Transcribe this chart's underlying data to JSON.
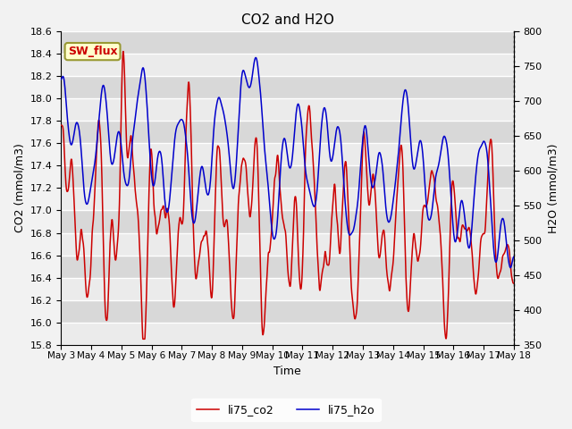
{
  "title": "CO2 and H2O",
  "xlabel": "Time",
  "ylabel_left": "CO2 (mmol/m3)",
  "ylabel_right": "H2O (mmol/m3)",
  "ylim_left": [
    15.8,
    18.6
  ],
  "ylim_right": [
    350,
    800
  ],
  "yticks_left": [
    15.8,
    16.0,
    16.2,
    16.4,
    16.6,
    16.8,
    17.0,
    17.2,
    17.4,
    17.6,
    17.8,
    18.0,
    18.2,
    18.4,
    18.6
  ],
  "yticks_right": [
    350,
    400,
    450,
    500,
    550,
    600,
    650,
    700,
    750,
    800
  ],
  "xtick_labels": [
    "May 3",
    "May 4",
    "May 5",
    "May 6",
    "May 7",
    "May 8",
    "May 9",
    "May 10",
    "May 11",
    "May 12",
    "May 13",
    "May 14",
    "May 15",
    "May 16",
    "May 17",
    "May 18"
  ],
  "color_co2": "#cc0000",
  "color_h2o": "#0000cc",
  "label_co2": "li75_co2",
  "label_h2o": "li75_h2o",
  "annotation_text": "SW_flux",
  "annotation_color": "#cc0000",
  "annotation_bg": "#ffffcc",
  "annotation_border": "#999933",
  "bg_light": "#ebebeb",
  "bg_dark": "#d8d8d8",
  "linewidth": 1.1,
  "n_points": 2000,
  "fig_bg": "#f2f2f2"
}
